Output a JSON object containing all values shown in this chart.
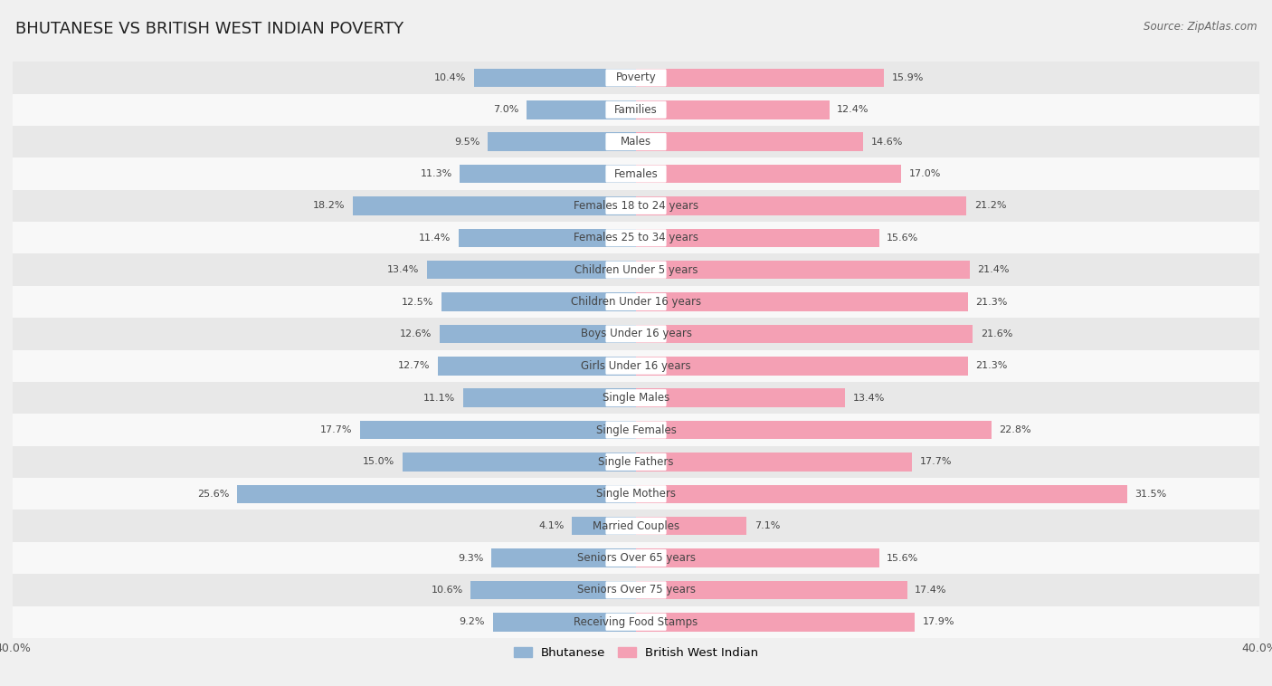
{
  "title": "BHUTANESE VS BRITISH WEST INDIAN POVERTY",
  "source": "Source: ZipAtlas.com",
  "categories": [
    "Poverty",
    "Families",
    "Males",
    "Females",
    "Females 18 to 24 years",
    "Females 25 to 34 years",
    "Children Under 5 years",
    "Children Under 16 years",
    "Boys Under 16 years",
    "Girls Under 16 years",
    "Single Males",
    "Single Females",
    "Single Fathers",
    "Single Mothers",
    "Married Couples",
    "Seniors Over 65 years",
    "Seniors Over 75 years",
    "Receiving Food Stamps"
  ],
  "bhutanese": [
    10.4,
    7.0,
    9.5,
    11.3,
    18.2,
    11.4,
    13.4,
    12.5,
    12.6,
    12.7,
    11.1,
    17.7,
    15.0,
    25.6,
    4.1,
    9.3,
    10.6,
    9.2
  ],
  "british_west_indian": [
    15.9,
    12.4,
    14.6,
    17.0,
    21.2,
    15.6,
    21.4,
    21.3,
    21.6,
    21.3,
    13.4,
    22.8,
    17.7,
    31.5,
    7.1,
    15.6,
    17.4,
    17.9
  ],
  "bhutanese_color": "#92b4d4",
  "british_west_indian_color": "#f4a0b4",
  "bhutanese_label": "Bhutanese",
  "british_west_indian_label": "British West Indian",
  "xlim": [
    -40,
    40
  ],
  "bar_height": 0.58,
  "background_color": "#f0f0f0",
  "row_colors": [
    "#e8e8e8",
    "#f8f8f8"
  ],
  "label_fontsize": 8.5,
  "value_fontsize": 8.0,
  "title_fontsize": 13,
  "source_fontsize": 8.5
}
